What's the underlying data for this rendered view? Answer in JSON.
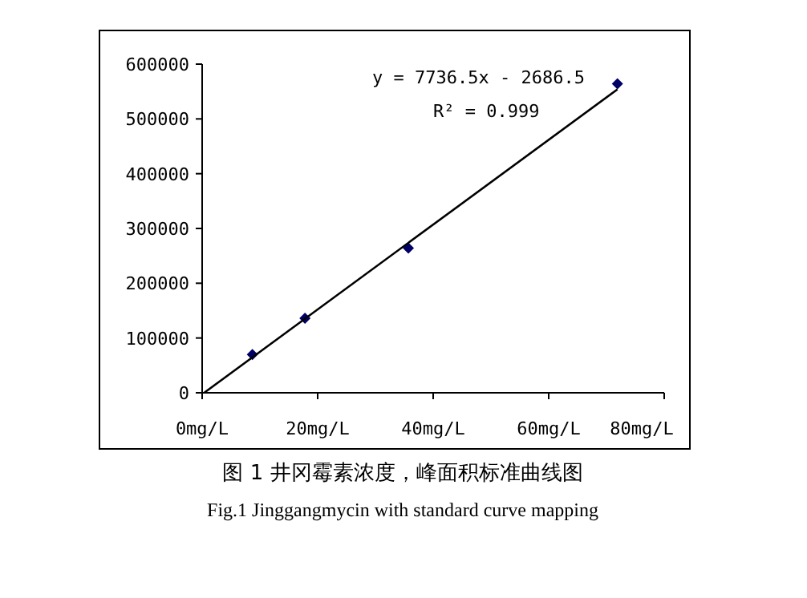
{
  "chart_data": {
    "type": "scatter",
    "title": "图 1 井冈霉素浓度，峰面积标准曲线图",
    "subtitle": "Fig.1 Jinggangmycin with standard curve mapping",
    "annotations": [
      "y = 7736.5x - 2686.5",
      "R² = 0.999"
    ],
    "series": [
      {
        "type": "scatter",
        "color": "#000066",
        "marker": "diamond",
        "x": [
          8.7,
          17.8,
          35.7,
          71.9
        ],
        "values": [
          70000,
          136000,
          264000,
          564000
        ]
      },
      {
        "type": "line",
        "color": "#000000",
        "marker": "none",
        "x": [
          0.35,
          71.9
        ],
        "values": [
          0,
          554000
        ]
      }
    ],
    "xlim": [
      0,
      80
    ],
    "xticks": [
      {
        "value": 0,
        "label": "0mg/L"
      },
      {
        "value": 20,
        "label": "20mg/L"
      },
      {
        "value": 40,
        "label": "40mg/L"
      },
      {
        "value": 60,
        "label": "60mg/L"
      },
      {
        "value": 80,
        "label": "80mg/L"
      }
    ],
    "ylim": [
      0,
      600000
    ],
    "yticks": [
      0,
      100000,
      200000,
      300000,
      400000,
      500000,
      600000
    ],
    "grid": false
  }
}
